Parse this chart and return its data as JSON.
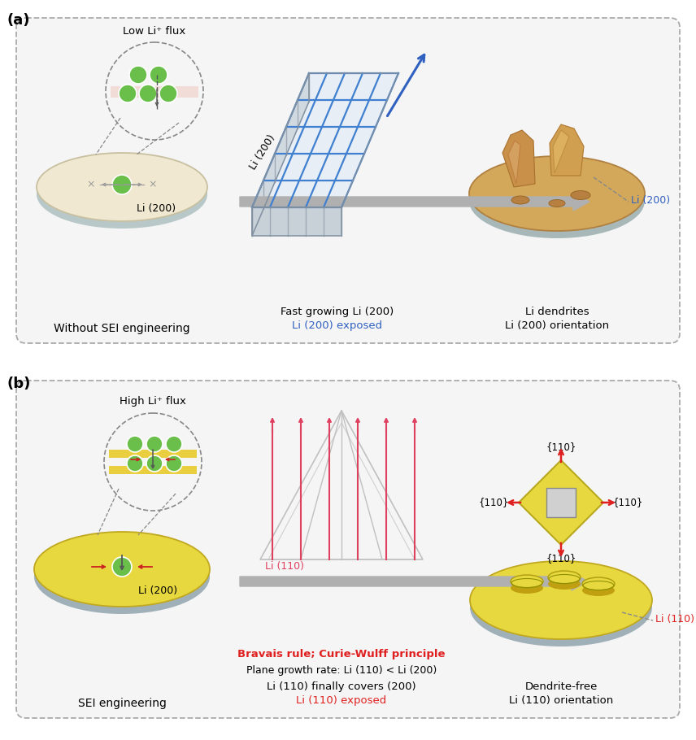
{
  "bg_color": "#ffffff",
  "panel_border": "#aaaaaa",
  "label_a": "(a)",
  "label_b": "(b)",
  "panel_a": {
    "col1_title": "Without SEI engineering",
    "col1_flux": "Low Li⁺ flux",
    "col2_line1": "Fast growing Li (200)",
    "col2_line2": "Li (200) exposed",
    "col2_crystal_label": "Li (200)",
    "col3_line1": "Li dendrites",
    "col3_line2": "Li (200) orientation",
    "col3_label": "Li (200)"
  },
  "panel_b": {
    "col1_title": "SEI engineering",
    "col1_flux": "High Li⁺ flux",
    "col1_label": "Li (200)",
    "col2_line1": "Li (110) finally covers (200)",
    "col2_line2": "Li (110) exposed",
    "col2_crystal_label": "Li (110)",
    "col2_rule1": "Bravais rule; Curie-Wulff principle",
    "col2_rule2": "Plane growth rate: Li (110) < Li (200)",
    "col3_line1": "Dendrite-free",
    "col3_line2": "Li (110) orientation",
    "col3_label": "Li (110)"
  },
  "green_color": "#6abf4b",
  "blue_color": "#3060c0",
  "red_color": "#e02020",
  "gray_arrow": "#b0b0b0",
  "disk_beige": "#f0e8d0",
  "disk_beige_edge": "#c8c0a0",
  "disk_beige_shadow": "#b8c8c8",
  "disk_yellow": "#e8d840",
  "disk_yellow_edge": "#c0a820",
  "disk_yellow_shadow": "#a0b0b8",
  "dendrite_tan": "#d4a85a",
  "dendrite_dark": "#b88040",
  "pink_layer": "#f0c8c0"
}
